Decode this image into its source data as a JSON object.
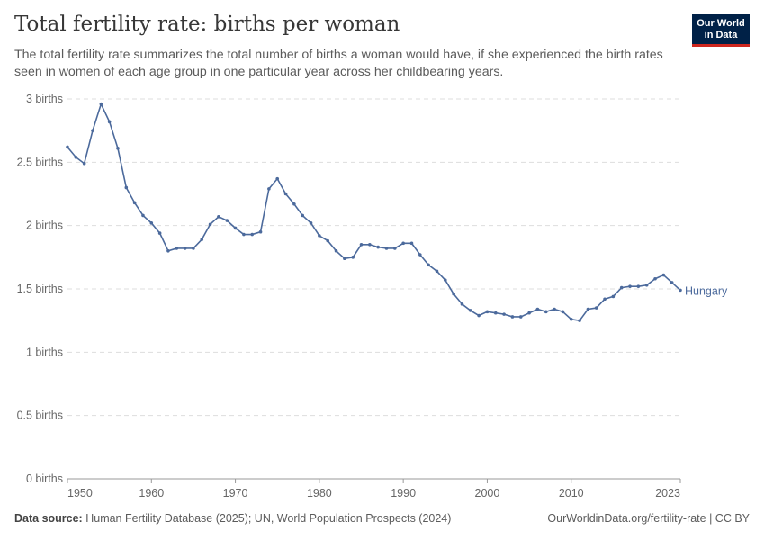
{
  "header": {
    "title": "Total fertility rate: births per woman",
    "subtitle": "The total fertility rate summarizes the total number of births a woman would have, if she experienced the birth rates seen in women of each age group in one particular year across her childbearing years.",
    "logo": "Our World in Data"
  },
  "footer": {
    "source_label": "Data source:",
    "source_text": "Human Fertility Database (2025); UN, World Population Prospects (2024)",
    "url_text": "OurWorldinData.org/fertility-rate | CC BY"
  },
  "chart_data": {
    "type": "line",
    "title": "Total fertility rate: births per woman",
    "xlabel": "",
    "ylabel": "",
    "xlim": [
      1950,
      2023
    ],
    "ylim": [
      0,
      3
    ],
    "grid": "horizontal dashed",
    "legend": "end-label right",
    "x_ticks": [
      "1950",
      "1960",
      "1970",
      "1980",
      "1990",
      "2000",
      "2010",
      "2023"
    ],
    "y_ticks": [
      "0 births",
      "0.5 births",
      "1 births",
      "1.5 births",
      "2 births",
      "2.5 births",
      "3 births"
    ],
    "series": [
      {
        "name": "Hungary",
        "color": "#4c6a9c",
        "x": [
          1950,
          1951,
          1952,
          1953,
          1954,
          1955,
          1956,
          1957,
          1958,
          1959,
          1960,
          1961,
          1962,
          1963,
          1964,
          1965,
          1966,
          1967,
          1968,
          1969,
          1970,
          1971,
          1972,
          1973,
          1974,
          1975,
          1976,
          1977,
          1978,
          1979,
          1980,
          1981,
          1982,
          1983,
          1984,
          1985,
          1986,
          1987,
          1988,
          1989,
          1990,
          1991,
          1992,
          1993,
          1994,
          1995,
          1996,
          1997,
          1998,
          1999,
          2000,
          2001,
          2002,
          2003,
          2004,
          2005,
          2006,
          2007,
          2008,
          2009,
          2010,
          2011,
          2012,
          2013,
          2014,
          2015,
          2016,
          2017,
          2018,
          2019,
          2020,
          2021,
          2022,
          2023
        ],
        "values": [
          2.62,
          2.54,
          2.49,
          2.75,
          2.96,
          2.82,
          2.61,
          2.3,
          2.18,
          2.08,
          2.02,
          1.94,
          1.8,
          1.82,
          1.82,
          1.82,
          1.89,
          2.01,
          2.07,
          2.04,
          1.98,
          1.93,
          1.93,
          1.95,
          2.29,
          2.37,
          2.25,
          2.17,
          2.08,
          2.02,
          1.92,
          1.88,
          1.8,
          1.74,
          1.75,
          1.85,
          1.85,
          1.83,
          1.82,
          1.82,
          1.86,
          1.86,
          1.77,
          1.69,
          1.64,
          1.57,
          1.46,
          1.38,
          1.33,
          1.29,
          1.32,
          1.31,
          1.3,
          1.28,
          1.28,
          1.31,
          1.34,
          1.32,
          1.34,
          1.32,
          1.26,
          1.25,
          1.34,
          1.35,
          1.42,
          1.44,
          1.51,
          1.52,
          1.52,
          1.53,
          1.58,
          1.61,
          1.55,
          1.49
        ]
      }
    ]
  }
}
